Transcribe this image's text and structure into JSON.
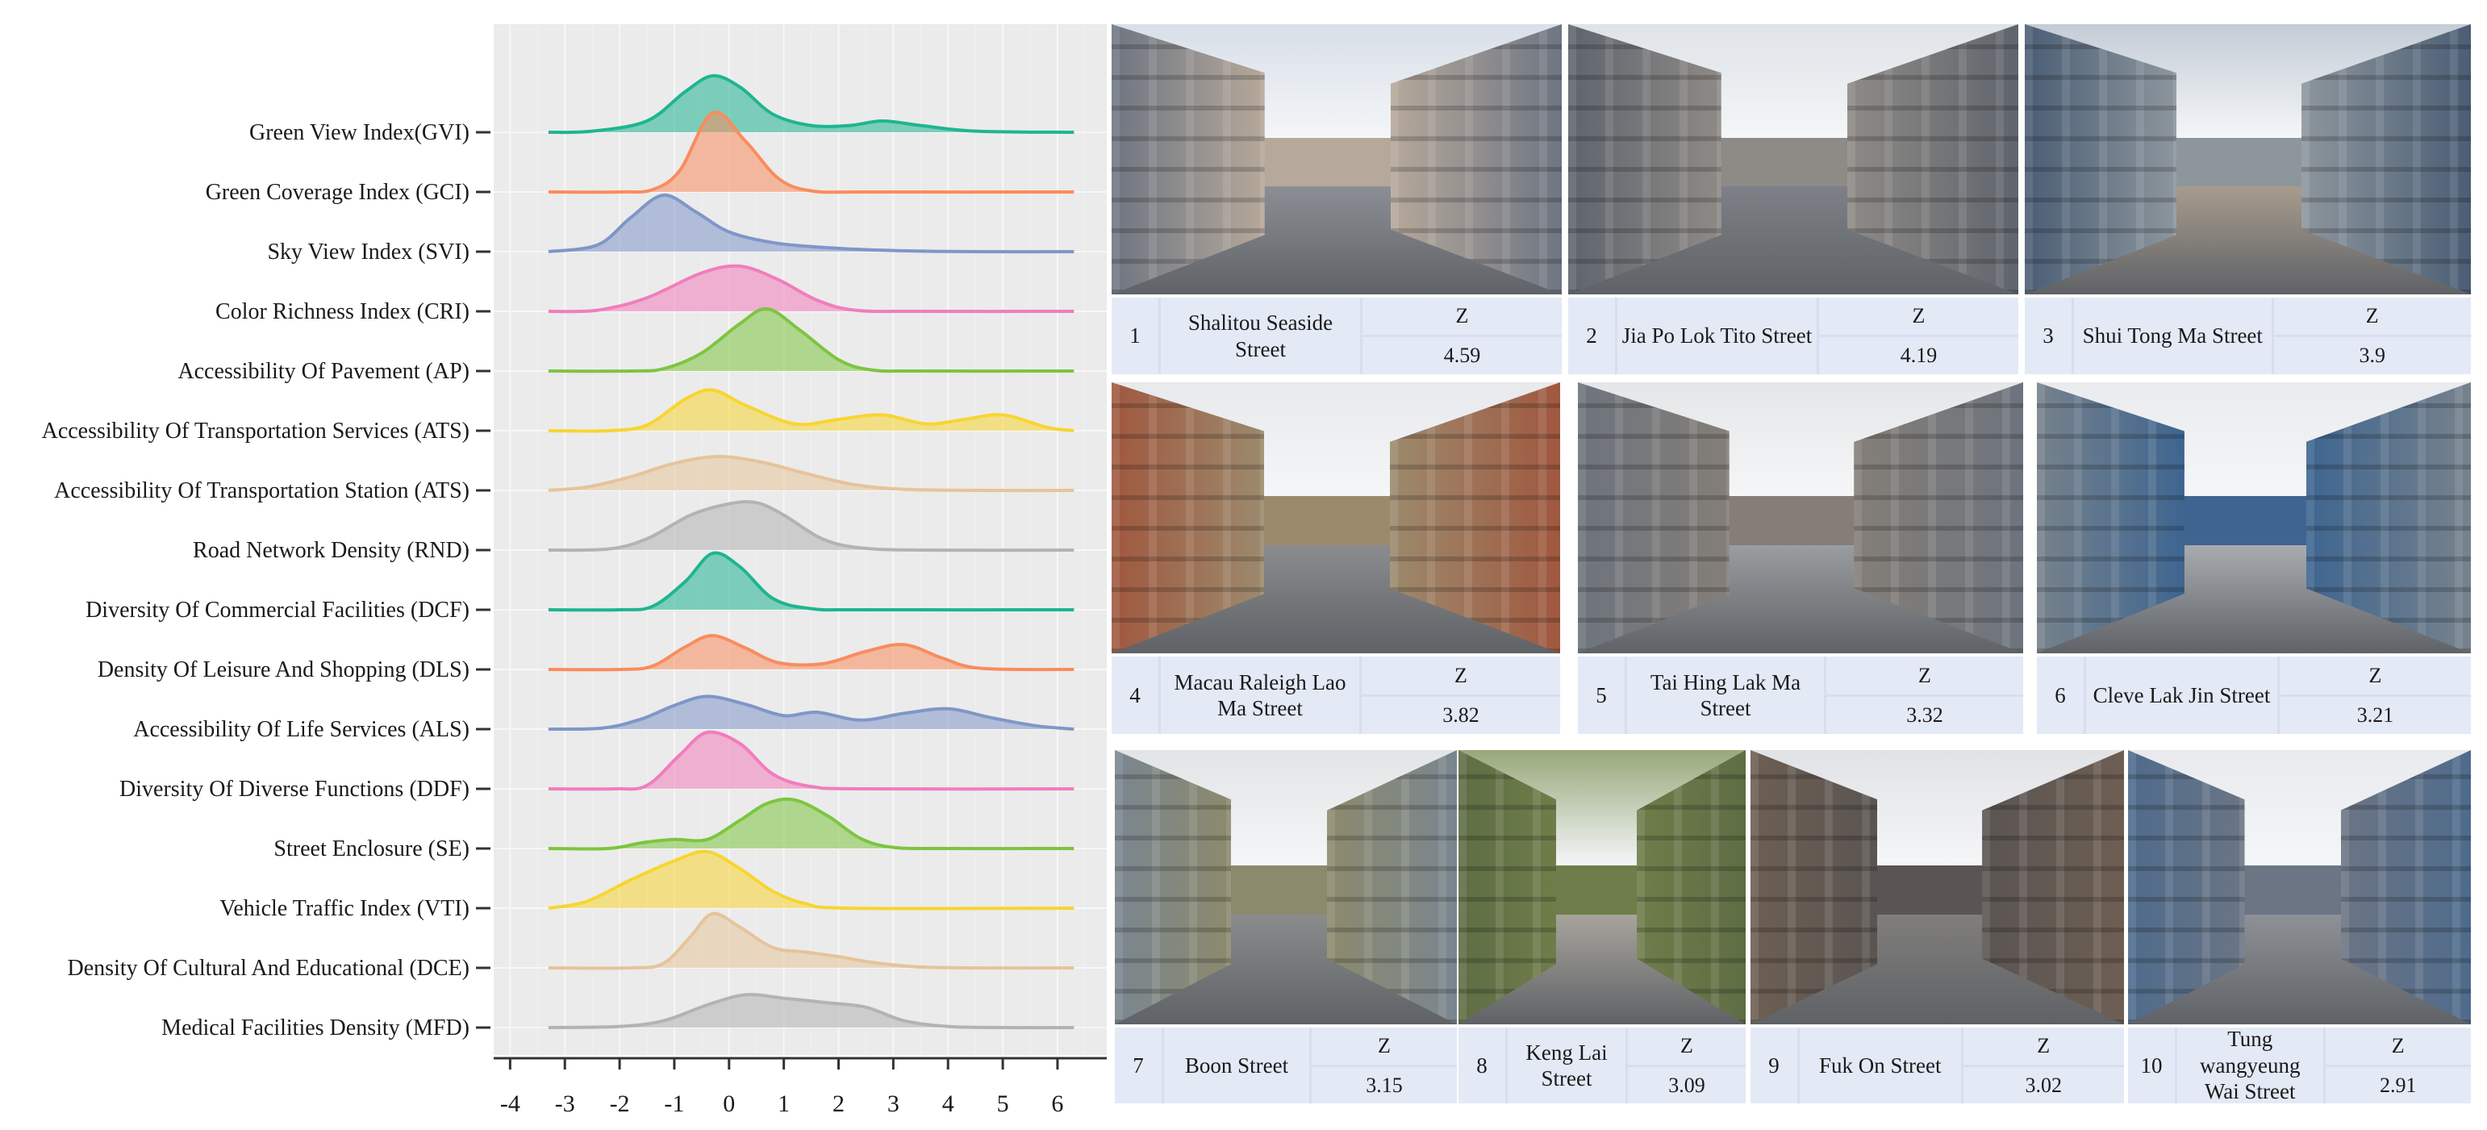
{
  "chart_data": {
    "type": "ridgeline",
    "x_ticks": [
      -4,
      -3,
      -2,
      -1,
      0,
      1,
      2,
      3,
      4,
      5,
      6
    ],
    "xlim": [
      -4.3,
      6.9
    ],
    "grid": true,
    "series": [
      {
        "name": "Green View Index(GVI)",
        "color": "#1fb58f",
        "density": [
          [
            -3.3,
            0.0
          ],
          [
            -2.5,
            0.02
          ],
          [
            -1.5,
            0.2
          ],
          [
            -0.8,
            0.72
          ],
          [
            -0.3,
            1.0
          ],
          [
            0.2,
            0.8
          ],
          [
            0.8,
            0.32
          ],
          [
            1.5,
            0.12
          ],
          [
            2.2,
            0.12
          ],
          [
            2.8,
            0.2
          ],
          [
            3.5,
            0.12
          ],
          [
            4.5,
            0.02
          ],
          [
            6.3,
            0.0
          ]
        ]
      },
      {
        "name": "Green Coverage Index (GCI)",
        "color": "#f98c5e",
        "density": [
          [
            -3.3,
            0.0
          ],
          [
            -2.0,
            0.0
          ],
          [
            -1.4,
            0.04
          ],
          [
            -0.9,
            0.38
          ],
          [
            -0.3,
            1.4
          ],
          [
            0.3,
            0.9
          ],
          [
            0.9,
            0.24
          ],
          [
            1.5,
            0.02
          ],
          [
            2.5,
            0.0
          ],
          [
            6.3,
            0.0
          ]
        ]
      },
      {
        "name": "Sky View Index (SVI)",
        "color": "#7f96c8",
        "density": [
          [
            -3.3,
            0.0
          ],
          [
            -2.4,
            0.12
          ],
          [
            -1.8,
            0.6
          ],
          [
            -1.2,
            1.0
          ],
          [
            -0.6,
            0.7
          ],
          [
            0.0,
            0.35
          ],
          [
            0.8,
            0.16
          ],
          [
            1.8,
            0.07
          ],
          [
            3.0,
            0.02
          ],
          [
            4.5,
            0.0
          ],
          [
            6.3,
            0.0
          ]
        ]
      },
      {
        "name": "Color Richness Index (CRI)",
        "color": "#f17dbc",
        "density": [
          [
            -3.3,
            0.0
          ],
          [
            -2.4,
            0.02
          ],
          [
            -1.5,
            0.24
          ],
          [
            -0.5,
            0.68
          ],
          [
            0.2,
            0.8
          ],
          [
            0.9,
            0.56
          ],
          [
            1.6,
            0.2
          ],
          [
            2.3,
            0.02
          ],
          [
            3.5,
            0.0
          ],
          [
            6.3,
            0.0
          ]
        ]
      },
      {
        "name": "Accessibility Of Pavement (AP)",
        "color": "#7dc540",
        "density": [
          [
            -3.3,
            0.0
          ],
          [
            -1.8,
            0.0
          ],
          [
            -1.2,
            0.04
          ],
          [
            -0.5,
            0.32
          ],
          [
            0.2,
            0.84
          ],
          [
            0.7,
            1.1
          ],
          [
            1.3,
            0.72
          ],
          [
            2.0,
            0.2
          ],
          [
            2.6,
            0.02
          ],
          [
            3.5,
            0.0
          ],
          [
            6.3,
            0.0
          ]
        ]
      },
      {
        "name": "Accessibility Of Transportation Services (ATS)",
        "color": "#f7d531",
        "density": [
          [
            -3.3,
            0.0
          ],
          [
            -2.2,
            0.0
          ],
          [
            -1.5,
            0.1
          ],
          [
            -0.8,
            0.56
          ],
          [
            -0.3,
            0.72
          ],
          [
            0.3,
            0.45
          ],
          [
            1.2,
            0.12
          ],
          [
            2.0,
            0.2
          ],
          [
            2.8,
            0.28
          ],
          [
            3.6,
            0.12
          ],
          [
            4.3,
            0.2
          ],
          [
            5.0,
            0.28
          ],
          [
            5.8,
            0.06
          ],
          [
            6.3,
            0.0
          ]
        ]
      },
      {
        "name": "Accessibility Of Transportation Station (ATS)",
        "color": "#e5c49b",
        "density": [
          [
            -3.3,
            0.0
          ],
          [
            -2.6,
            0.06
          ],
          [
            -1.8,
            0.24
          ],
          [
            -1.0,
            0.48
          ],
          [
            -0.2,
            0.6
          ],
          [
            0.6,
            0.5
          ],
          [
            1.4,
            0.3
          ],
          [
            2.3,
            0.1
          ],
          [
            3.2,
            0.02
          ],
          [
            4.5,
            0.0
          ],
          [
            6.3,
            0.0
          ]
        ]
      },
      {
        "name": "Road Network Density (RND)",
        "color": "#b3b3b3",
        "density": [
          [
            -3.3,
            0.0
          ],
          [
            -2.2,
            0.02
          ],
          [
            -1.5,
            0.2
          ],
          [
            -0.7,
            0.62
          ],
          [
            0.0,
            0.82
          ],
          [
            0.5,
            0.84
          ],
          [
            1.0,
            0.62
          ],
          [
            1.7,
            0.2
          ],
          [
            2.4,
            0.04
          ],
          [
            3.5,
            0.0
          ],
          [
            6.3,
            0.0
          ]
        ]
      },
      {
        "name": "Diversity Of Commercial Facilities (DCF)",
        "color": "#1fb58f",
        "density": [
          [
            -3.3,
            0.0
          ],
          [
            -2.0,
            0.0
          ],
          [
            -1.4,
            0.06
          ],
          [
            -0.8,
            0.5
          ],
          [
            -0.3,
            1.0
          ],
          [
            0.2,
            0.76
          ],
          [
            0.8,
            0.2
          ],
          [
            1.5,
            0.02
          ],
          [
            2.5,
            0.0
          ],
          [
            6.3,
            0.0
          ]
        ]
      },
      {
        "name": "Density Of Leisure And Shopping (DLS)",
        "color": "#f98c5e",
        "density": [
          [
            -3.3,
            0.0
          ],
          [
            -2.0,
            0.0
          ],
          [
            -1.4,
            0.06
          ],
          [
            -0.8,
            0.4
          ],
          [
            -0.3,
            0.6
          ],
          [
            0.3,
            0.38
          ],
          [
            0.9,
            0.12
          ],
          [
            1.7,
            0.1
          ],
          [
            2.5,
            0.32
          ],
          [
            3.2,
            0.44
          ],
          [
            3.9,
            0.2
          ],
          [
            4.6,
            0.02
          ],
          [
            6.3,
            0.0
          ]
        ]
      },
      {
        "name": "Accessibility Of Life Services (ALS)",
        "color": "#7f96c8",
        "density": [
          [
            -3.3,
            0.0
          ],
          [
            -2.3,
            0.02
          ],
          [
            -1.6,
            0.18
          ],
          [
            -1.0,
            0.42
          ],
          [
            -0.4,
            0.58
          ],
          [
            0.3,
            0.44
          ],
          [
            1.0,
            0.24
          ],
          [
            1.6,
            0.3
          ],
          [
            2.4,
            0.16
          ],
          [
            3.2,
            0.28
          ],
          [
            4.0,
            0.36
          ],
          [
            4.8,
            0.2
          ],
          [
            5.6,
            0.06
          ],
          [
            6.3,
            0.0
          ]
        ]
      },
      {
        "name": "Diversity Of Diverse Functions (DDF)",
        "color": "#f17dbc",
        "density": [
          [
            -3.3,
            0.0
          ],
          [
            -2.1,
            0.0
          ],
          [
            -1.5,
            0.06
          ],
          [
            -0.9,
            0.6
          ],
          [
            -0.4,
            1.0
          ],
          [
            0.2,
            0.8
          ],
          [
            0.8,
            0.26
          ],
          [
            1.5,
            0.04
          ],
          [
            2.5,
            0.0
          ],
          [
            6.3,
            0.0
          ]
        ]
      },
      {
        "name": "Street Enclosure (SE)",
        "color": "#7dc540",
        "density": [
          [
            -3.3,
            0.0
          ],
          [
            -2.2,
            0.0
          ],
          [
            -1.6,
            0.1
          ],
          [
            -1.0,
            0.16
          ],
          [
            -0.4,
            0.16
          ],
          [
            0.2,
            0.5
          ],
          [
            0.7,
            0.8
          ],
          [
            1.2,
            0.86
          ],
          [
            1.8,
            0.58
          ],
          [
            2.4,
            0.18
          ],
          [
            3.0,
            0.02
          ],
          [
            4.0,
            0.0
          ],
          [
            6.3,
            0.0
          ]
        ]
      },
      {
        "name": "Vehicle Traffic Index (VTI)",
        "color": "#f7d531",
        "density": [
          [
            -3.3,
            0.0
          ],
          [
            -2.6,
            0.12
          ],
          [
            -1.8,
            0.5
          ],
          [
            -1.0,
            0.84
          ],
          [
            -0.4,
            1.0
          ],
          [
            0.2,
            0.7
          ],
          [
            0.8,
            0.3
          ],
          [
            1.4,
            0.08
          ],
          [
            2.2,
            0.0
          ],
          [
            6.3,
            0.0
          ]
        ]
      },
      {
        "name": "Density Of Cultural And Educational (DCE)",
        "color": "#e5c49b",
        "density": [
          [
            -3.3,
            0.0
          ],
          [
            -1.8,
            0.0
          ],
          [
            -1.2,
            0.08
          ],
          [
            -0.7,
            0.56
          ],
          [
            -0.3,
            0.96
          ],
          [
            0.2,
            0.72
          ],
          [
            0.8,
            0.36
          ],
          [
            1.4,
            0.28
          ],
          [
            2.0,
            0.2
          ],
          [
            2.6,
            0.1
          ],
          [
            3.4,
            0.02
          ],
          [
            4.5,
            0.0
          ],
          [
            6.3,
            0.0
          ]
        ]
      },
      {
        "name": "Medical Facilities Density (MFD)",
        "color": "#b3b3b3",
        "density": [
          [
            -3.3,
            0.0
          ],
          [
            -2.0,
            0.02
          ],
          [
            -1.2,
            0.12
          ],
          [
            -0.4,
            0.4
          ],
          [
            0.3,
            0.58
          ],
          [
            1.0,
            0.52
          ],
          [
            1.8,
            0.44
          ],
          [
            2.5,
            0.36
          ],
          [
            3.2,
            0.12
          ],
          [
            4.0,
            0.02
          ],
          [
            5.0,
            0.0
          ],
          [
            6.3,
            0.0
          ]
        ]
      }
    ]
  },
  "streets": [
    {
      "rank": "1",
      "name": "Shalitou Seaside Street",
      "z_label": "Z",
      "z": "4.59",
      "colors": [
        "#d8dfe8",
        "#8b8f95",
        "#b6a89a",
        "#6e7682"
      ]
    },
    {
      "rank": "2",
      "name": "Jia Po Lok Tito Street",
      "z_label": "Z",
      "z": "4.19",
      "colors": [
        "#dfe3e7",
        "#7d8086",
        "#8e8a86",
        "#5f656d"
      ]
    },
    {
      "rank": "3",
      "name": "Shui Tong Ma Street",
      "z_label": "Z",
      "z": "3.9",
      "colors": [
        "#c4ccd6",
        "#a89c8e",
        "#8d969d",
        "#4b5e75"
      ]
    },
    {
      "rank": "4",
      "name": "Macau Raleigh Lao Ma Street",
      "z_label": "Z",
      "z": "3.82",
      "colors": [
        "#e7e9ec",
        "#8a8c8e",
        "#9c8a6d",
        "#a0583f"
      ]
    },
    {
      "rank": "5",
      "name": "Tai Hing Lak Ma Street",
      "z_label": "Z",
      "z": "3.32",
      "colors": [
        "#e4e6e8",
        "#9a9da0",
        "#847e77",
        "#6d747d"
      ]
    },
    {
      "rank": "6",
      "name": "Cleve Lak Jin Street",
      "z_label": "Z",
      "z": "3.21",
      "colors": [
        "#e9ebee",
        "#a8acb1",
        "#3e6590",
        "#77828c"
      ]
    },
    {
      "rank": "7",
      "name": "Boon Street",
      "z_label": "Z",
      "z": "3.15",
      "colors": [
        "#e2e4e6",
        "#8a8c8c",
        "#8c8a6c",
        "#7a8690"
      ]
    },
    {
      "rank": "8",
      "name": "Keng Lai Street",
      "z_label": "Z",
      "z": "3.09",
      "colors": [
        "#98a87a",
        "#a8a49c",
        "#6f7d4a",
        "#5e6d44"
      ]
    },
    {
      "rank": "9",
      "name": "Fuk On Street",
      "z_label": "Z",
      "z": "3.02",
      "colors": [
        "#e0e2e5",
        "#807e7c",
        "#5a5552",
        "#6d5e52"
      ]
    },
    {
      "rank": "10",
      "name": "Tung wangyeung Wai Street",
      "z_label": "Z",
      "z": "2.91",
      "colors": [
        "#e8eaed",
        "#8e9196",
        "#6b7584",
        "#4e6b8c"
      ]
    }
  ]
}
